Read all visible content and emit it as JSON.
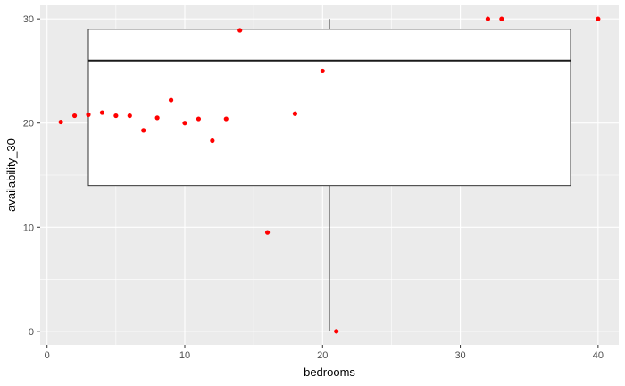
{
  "chart_data": {
    "type": "scatter",
    "xlabel": "bedrooms",
    "ylabel": "availability_30",
    "xlim": [
      -0.5,
      41.5
    ],
    "ylim": [
      -1.3,
      31.3
    ],
    "x_ticks": [
      0,
      10,
      20,
      30,
      40
    ],
    "y_ticks": [
      0,
      10,
      20,
      30
    ],
    "grid": true,
    "background": "#ebebeb",
    "grid_color": "#ffffff",
    "point_color": "#ff0000",
    "box": {
      "x_min": 3,
      "x_max": 38,
      "x_whisker": 20.5,
      "q1": 14,
      "median": 26,
      "q3": 29,
      "whisker_low": 0,
      "whisker_high": 30
    },
    "points": [
      {
        "x": 1,
        "y": 20.1
      },
      {
        "x": 2,
        "y": 20.7
      },
      {
        "x": 3,
        "y": 20.8
      },
      {
        "x": 4,
        "y": 21.0
      },
      {
        "x": 5,
        "y": 20.7
      },
      {
        "x": 6,
        "y": 20.7
      },
      {
        "x": 7,
        "y": 19.3
      },
      {
        "x": 8,
        "y": 20.5
      },
      {
        "x": 9,
        "y": 22.2
      },
      {
        "x": 10,
        "y": 20.0
      },
      {
        "x": 11,
        "y": 20.4
      },
      {
        "x": 12,
        "y": 18.3
      },
      {
        "x": 13,
        "y": 20.4
      },
      {
        "x": 14,
        "y": 28.9
      },
      {
        "x": 16,
        "y": 9.5
      },
      {
        "x": 18,
        "y": 20.9
      },
      {
        "x": 20,
        "y": 25.0
      },
      {
        "x": 21,
        "y": 0
      },
      {
        "x": 32,
        "y": 30
      },
      {
        "x": 33,
        "y": 30
      },
      {
        "x": 40,
        "y": 30
      }
    ]
  }
}
